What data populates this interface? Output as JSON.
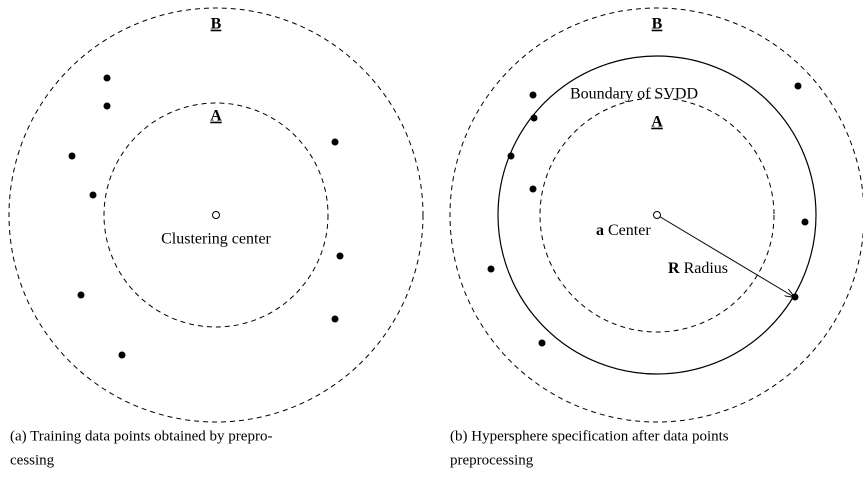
{
  "left": {
    "outer_label": "B",
    "inner_label": "A",
    "center_label": "Clustering center",
    "caption": [
      "(a) Training data points obtained by prepro-",
      "cessing"
    ]
  },
  "right": {
    "outer_label": "B",
    "inner_label": "A",
    "boundary_label": "Boundary of SVDD",
    "center_label": {
      "symbol": "a",
      "text": "Center"
    },
    "radius_label": {
      "symbol": "R",
      "text": "Radius"
    },
    "caption": [
      "(b) Hypersphere specification after data points",
      "preprocessing"
    ]
  }
}
